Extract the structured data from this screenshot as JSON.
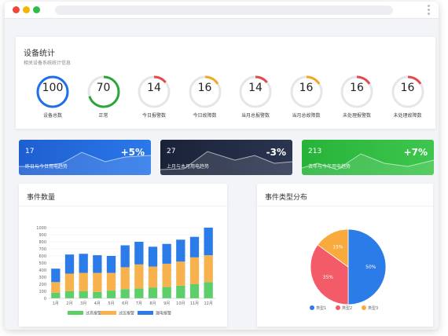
{
  "colors": {
    "blue": "#1f6feb",
    "green": "#2aa63a",
    "red": "#e24b4b",
    "orange": "#f5a623",
    "gray_track": "#e4e6ea",
    "bar_green": "#5ccf6a",
    "bar_orange": "#f8b24d",
    "bar_blue": "#2b7be8",
    "pie_blue": "#2b7be8",
    "pie_red": "#f45b69",
    "pie_orange": "#f9aa3c"
  },
  "stats": {
    "title": "设备统计",
    "subtitle": "相关设备系统统计信息",
    "gauges": [
      {
        "value": "100",
        "label": "设备总数",
        "fraction": 1.0,
        "color": "#1f6feb"
      },
      {
        "value": "70",
        "label": "正常",
        "fraction": 0.7,
        "color": "#2aa63a"
      },
      {
        "value": "14",
        "label": "今日报警数",
        "fraction": 0.14,
        "color": "#e24b4b"
      },
      {
        "value": "16",
        "label": "今日故障数",
        "fraction": 0.16,
        "color": "#f5a623"
      },
      {
        "value": "14",
        "label": "当月总报警数",
        "fraction": 0.14,
        "color": "#e24b4b"
      },
      {
        "value": "16",
        "label": "当月总故障数",
        "fraction": 0.16,
        "color": "#f5a623"
      },
      {
        "value": "16",
        "label": "未处理报警数",
        "fraction": 0.16,
        "color": "#e24b4b"
      },
      {
        "value": "16",
        "label": "未处理故障数",
        "fraction": 0.16,
        "color": "#e24b4b"
      }
    ]
  },
  "kpis": [
    {
      "value": "17",
      "percent": "+5%",
      "desc": "昨日与今日用电趋势",
      "bg": "#1e5fd0",
      "bg2": "#2b78ea"
    },
    {
      "value": "27",
      "percent": "-3%",
      "desc": "上月与本月用电趋势",
      "bg": "#1a2238",
      "bg2": "#2a3550"
    },
    {
      "value": "213",
      "percent": "+7%",
      "desc": "去年与今年用电趋势",
      "bg": "#27b33a",
      "bg2": "#3ec64e"
    }
  ],
  "events_panel": {
    "title": "事件数量"
  },
  "types_panel": {
    "title": "事件类型分布"
  },
  "chart_data": [
    {
      "type": "bar",
      "stacked": true,
      "categories": [
        "1月",
        "2月",
        "3月",
        "4月",
        "5月",
        "6月",
        "7月",
        "8月",
        "9月",
        "10月",
        "11月",
        "12月"
      ],
      "series": [
        {
          "name": "过高报警",
          "values": [
            80,
            100,
            100,
            90,
            110,
            130,
            140,
            150,
            160,
            180,
            200,
            230
          ]
        },
        {
          "name": "过压报警",
          "values": [
            150,
            250,
            260,
            270,
            250,
            310,
            340,
            300,
            330,
            340,
            380,
            380
          ]
        },
        {
          "name": "漏电报警",
          "values": [
            190,
            270,
            270,
            250,
            240,
            310,
            320,
            280,
            280,
            310,
            290,
            390
          ]
        }
      ],
      "yticks": [
        "0",
        "100",
        "200",
        "300",
        "400",
        "500",
        "600",
        "700",
        "800",
        "900",
        "1000"
      ],
      "ylim": [
        0,
        1000
      ],
      "grid": true,
      "legend": "bottom"
    },
    {
      "type": "pie",
      "slices": [
        {
          "name": "类型1",
          "value": 50,
          "label": "50%"
        },
        {
          "name": "类型2",
          "value": 35,
          "label": "35%"
        },
        {
          "name": "类型3",
          "value": 15,
          "label": "15%"
        }
      ],
      "legend": "bottom"
    }
  ]
}
